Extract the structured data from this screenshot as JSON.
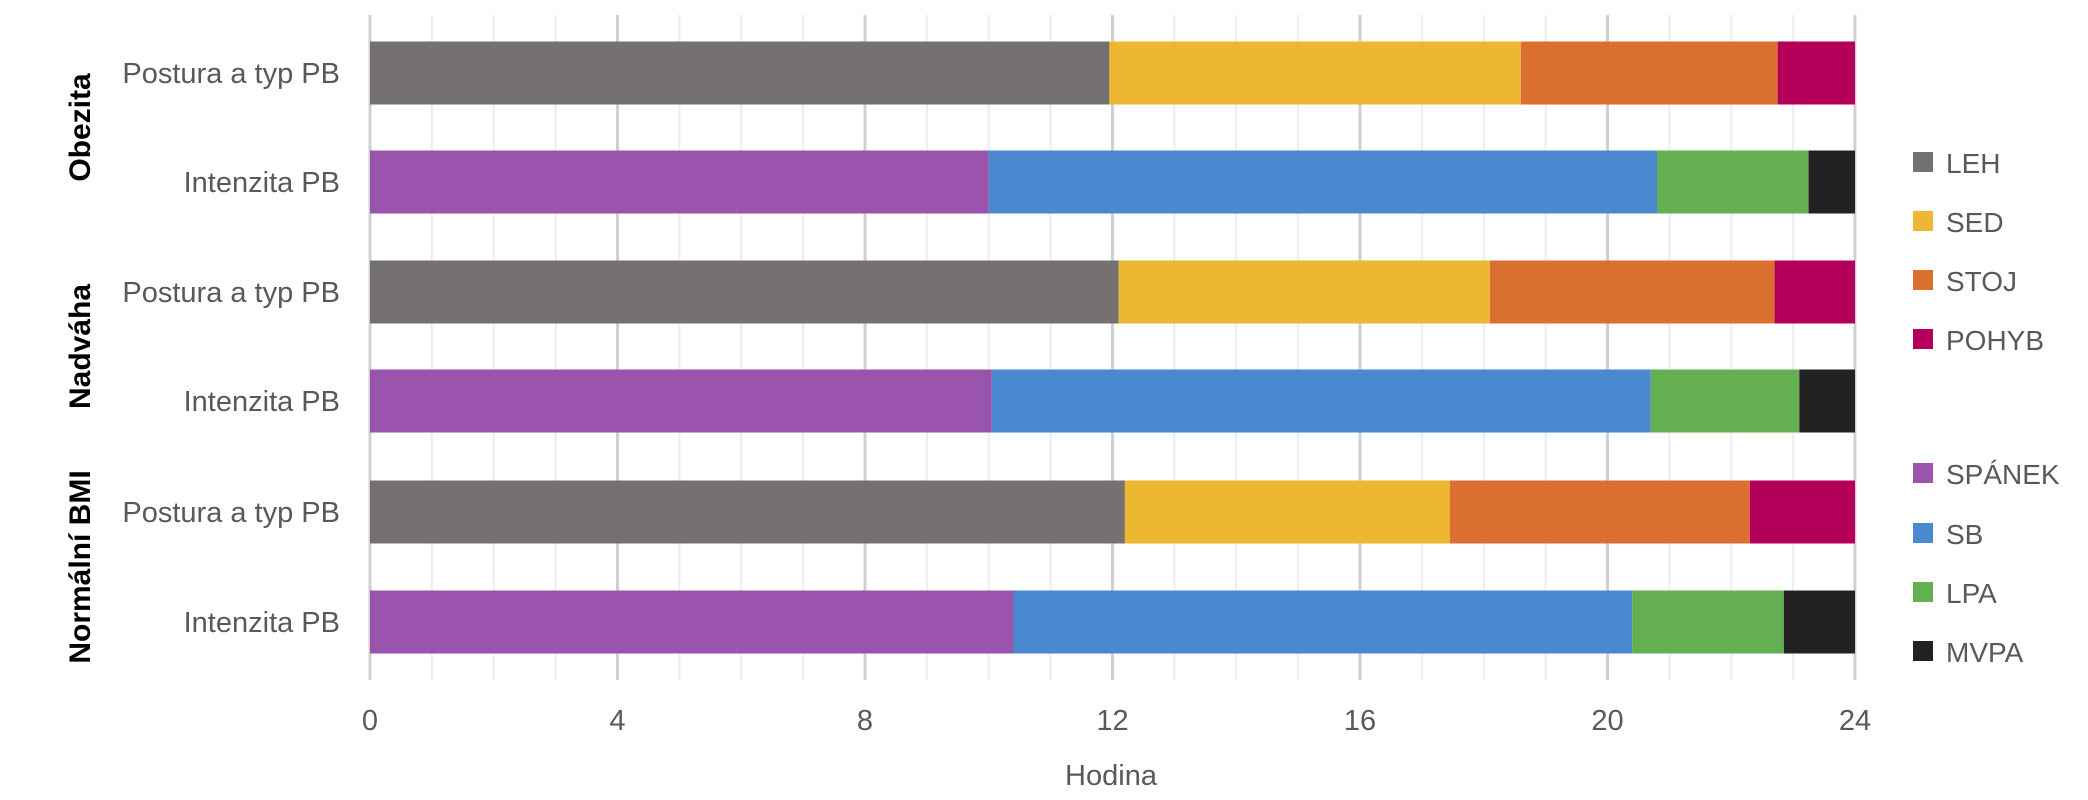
{
  "chart_data": {
    "type": "bar",
    "orientation": "horizontal",
    "stacked": true,
    "title": "",
    "xlabel": "Hodina",
    "ylabel": "",
    "xlim": [
      0,
      24
    ],
    "xticks": [
      "0",
      "4",
      "8",
      "12",
      "16",
      "20",
      "24"
    ],
    "grid": "vertical",
    "legend_position": "right",
    "groups": [
      {
        "name": "Obezita",
        "rows": [
          {
            "label": "Postura a typ PB",
            "segments": [
              {
                "series": "LEH",
                "value": 11.95
              },
              {
                "series": "SED",
                "value": 6.65
              },
              {
                "series": "STOJ",
                "value": 4.15
              },
              {
                "series": "POHYB",
                "value": 1.25
              }
            ]
          },
          {
            "label": "Intenzita PB",
            "segments": [
              {
                "series": "SPÁNEK",
                "value": 10.0
              },
              {
                "series": "SB",
                "value": 10.8
              },
              {
                "series": "LPA",
                "value": 2.45
              },
              {
                "series": "MVPA",
                "value": 0.75
              }
            ]
          }
        ]
      },
      {
        "name": "Nadváha",
        "rows": [
          {
            "label": "Postura a typ PB",
            "segments": [
              {
                "series": "LEH",
                "value": 12.1
              },
              {
                "series": "SED",
                "value": 6.0
              },
              {
                "series": "STOJ",
                "value": 4.6
              },
              {
                "series": "POHYB",
                "value": 1.3
              }
            ]
          },
          {
            "label": "Intenzita PB",
            "segments": [
              {
                "series": "SPÁNEK",
                "value": 10.05
              },
              {
                "series": "SB",
                "value": 10.65
              },
              {
                "series": "LPA",
                "value": 2.4
              },
              {
                "series": "MVPA",
                "value": 0.9
              }
            ]
          }
        ]
      },
      {
        "name": "Normální BMI",
        "rows": [
          {
            "label": "Postura a typ PB",
            "segments": [
              {
                "series": "LEH",
                "value": 12.2
              },
              {
                "series": "SED",
                "value": 5.25
              },
              {
                "series": "STOJ",
                "value": 4.85
              },
              {
                "series": "POHYB",
                "value": 1.7
              }
            ]
          },
          {
            "label": "Intenzita PB",
            "segments": [
              {
                "series": "SPÁNEK",
                "value": 10.4
              },
              {
                "series": "SB",
                "value": 10.0
              },
              {
                "series": "LPA",
                "value": 2.45
              },
              {
                "series": "MVPA",
                "value": 1.15
              }
            ]
          }
        ]
      }
    ],
    "legend": [
      {
        "name": "LEH",
        "color": "#767171"
      },
      {
        "name": "SED",
        "color": "#EDB732"
      },
      {
        "name": "STOJ",
        "color": "#DB6F2F"
      },
      {
        "name": "POHYB",
        "color": "#B5005B"
      },
      {
        "name": "SPÁNEK",
        "color": "#9B54AD"
      },
      {
        "name": "SB",
        "color": "#4A89CF"
      },
      {
        "name": "LPA",
        "color": "#63AF52"
      },
      {
        "name": "MVPA",
        "color": "#222222"
      }
    ]
  }
}
